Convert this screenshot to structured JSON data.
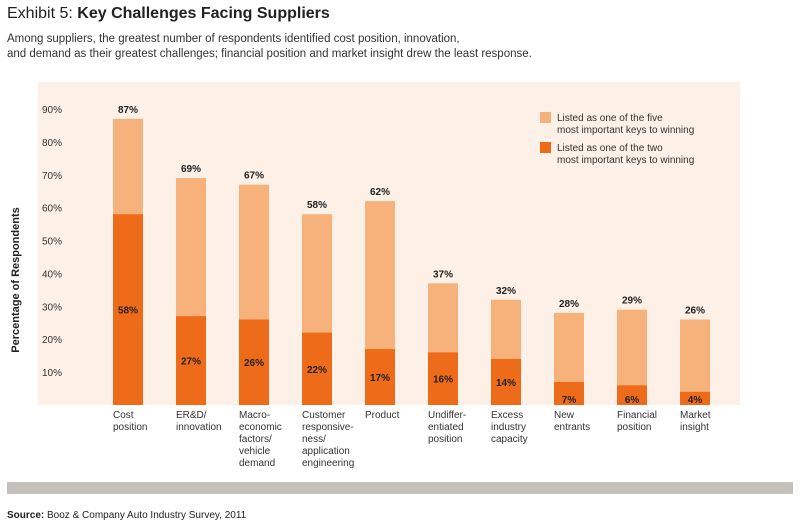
{
  "header": {
    "exhibit": "Exhibit 5:",
    "title": "Key Challenges Facing Suppliers",
    "subtitle_line1": "Among suppliers, the greatest number of respondents identified cost position, innovation,",
    "subtitle_line2": "and demand as their greatest challenges; financial position and market insight drew the least response."
  },
  "footer": {
    "source_label": "Source:",
    "source_text": "Booz & Company Auto Industry Survey, 2011"
  },
  "colors": {
    "light": "#f7b27c",
    "dark": "#ee6b1a",
    "panel": "#fdf0e6",
    "footer_bar": "#c4c0bc"
  },
  "chart_data": {
    "type": "bar",
    "ylabel": "Percentage of Respondents",
    "ylim": [
      0,
      90
    ],
    "yticks": [
      "10%",
      "20%",
      "30%",
      "40%",
      "50%",
      "60%",
      "70%",
      "80%",
      "90%"
    ],
    "categories": [
      [
        "Cost",
        "position"
      ],
      [
        "ER&D/",
        "innovation"
      ],
      [
        "Macro-",
        "economic",
        "factors/",
        "vehicle",
        "demand"
      ],
      [
        "Customer",
        "responsive-",
        "ness/",
        "application",
        "engineering"
      ],
      [
        "Product"
      ],
      [
        "Undiffer-",
        "entiated",
        "position"
      ],
      [
        "Excess",
        "industry",
        "capacity"
      ],
      [
        "New",
        "entrants"
      ],
      [
        "Financial",
        "position"
      ],
      [
        "Market",
        "insight"
      ]
    ],
    "series": [
      {
        "name": "Listed as one of the five most important keys to winning",
        "legend_lines": [
          "Listed as one of the five",
          "most important keys to winning"
        ],
        "values": [
          87,
          69,
          67,
          58,
          62,
          37,
          32,
          28,
          29,
          26
        ],
        "labels": [
          "87%",
          "69%",
          "67%",
          "58%",
          "62%",
          "37%",
          "32%",
          "28%",
          "29%",
          "26%"
        ]
      },
      {
        "name": "Listed as one of the two most important keys to winning",
        "legend_lines": [
          "Listed as one of the two",
          "most important keys to winning"
        ],
        "values": [
          58,
          27,
          26,
          22,
          17,
          16,
          14,
          7,
          6,
          4
        ],
        "labels": [
          "58%",
          "27%",
          "26%",
          "22%",
          "17%",
          "16%",
          "14%",
          "7%",
          "6%",
          "4%"
        ]
      }
    ],
    "legend_position": "top-right"
  }
}
